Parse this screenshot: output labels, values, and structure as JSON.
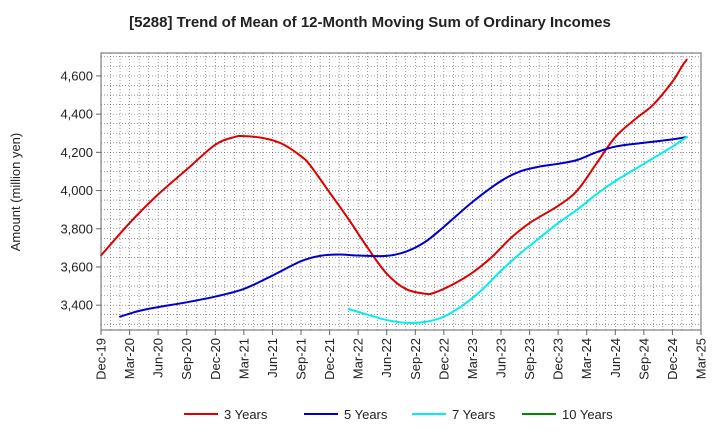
{
  "chart_data": {
    "type": "line",
    "title": "[5288]  Trend of Mean of 12-Month Moving Sum of Ordinary Incomes",
    "xlabel": "",
    "ylabel": "Amount (million yen)",
    "ylim": [
      3270,
      4720
    ],
    "y_ticks": [
      3400,
      3600,
      3800,
      4000,
      4200,
      4400,
      4600
    ],
    "y_tick_labels": [
      "3,400",
      "3,600",
      "3,800",
      "4,000",
      "4,200",
      "4,400",
      "4,600"
    ],
    "x_range": [
      0,
      63
    ],
    "x_ticks": [
      0,
      3,
      6,
      9,
      12,
      15,
      18,
      21,
      24,
      27,
      30,
      33,
      36,
      39,
      42,
      45,
      48,
      51,
      54,
      57,
      60,
      63
    ],
    "x_tick_labels": [
      "Dec-19",
      "Mar-20",
      "Jun-20",
      "Sep-20",
      "Dec-20",
      "Mar-21",
      "Jun-21",
      "Sep-21",
      "Dec-21",
      "Mar-22",
      "Jun-22",
      "Sep-22",
      "Dec-22",
      "Mar-23",
      "Jun-23",
      "Sep-23",
      "Dec-23",
      "Mar-24",
      "Jun-24",
      "Sep-24",
      "Dec-24",
      "Mar-25"
    ],
    "series": [
      {
        "name": "3 Years",
        "color": "#dd0000",
        "points": [
          [
            0,
            3660
          ],
          [
            3,
            3830
          ],
          [
            6,
            3980
          ],
          [
            9,
            4110
          ],
          [
            12,
            4240
          ],
          [
            14,
            4280
          ],
          [
            15,
            4285
          ],
          [
            17,
            4275
          ],
          [
            19,
            4245
          ],
          [
            21,
            4180
          ],
          [
            22,
            4130
          ],
          [
            24,
            3990
          ],
          [
            26,
            3850
          ],
          [
            28,
            3700
          ],
          [
            30,
            3565
          ],
          [
            32,
            3485
          ],
          [
            34,
            3460
          ],
          [
            35,
            3465
          ],
          [
            37,
            3510
          ],
          [
            39,
            3570
          ],
          [
            41,
            3650
          ],
          [
            43,
            3750
          ],
          [
            45,
            3830
          ],
          [
            48,
            3920
          ],
          [
            50,
            4000
          ],
          [
            52,
            4140
          ],
          [
            54,
            4280
          ],
          [
            56,
            4370
          ],
          [
            58,
            4450
          ],
          [
            60,
            4570
          ],
          [
            61,
            4650
          ],
          [
            61.5,
            4685
          ]
        ]
      },
      {
        "name": "5 Years",
        "color": "#0000cc",
        "points": [
          [
            2,
            3340
          ],
          [
            4,
            3370
          ],
          [
            6,
            3390
          ],
          [
            9,
            3415
          ],
          [
            12,
            3445
          ],
          [
            15,
            3485
          ],
          [
            18,
            3555
          ],
          [
            21,
            3630
          ],
          [
            23,
            3658
          ],
          [
            25,
            3665
          ],
          [
            27,
            3660
          ],
          [
            30,
            3658
          ],
          [
            32,
            3680
          ],
          [
            34,
            3730
          ],
          [
            36,
            3810
          ],
          [
            39,
            3940
          ],
          [
            42,
            4050
          ],
          [
            44,
            4100
          ],
          [
            46,
            4125
          ],
          [
            48,
            4140
          ],
          [
            50,
            4160
          ],
          [
            52,
            4200
          ],
          [
            54,
            4230
          ],
          [
            57,
            4250
          ],
          [
            60,
            4268
          ],
          [
            61.5,
            4280
          ]
        ]
      },
      {
        "name": "7 Years",
        "color": "#00eeee",
        "points": [
          [
            26,
            3380
          ],
          [
            28,
            3350
          ],
          [
            30,
            3322
          ],
          [
            32,
            3308
          ],
          [
            34,
            3312
          ],
          [
            36,
            3340
          ],
          [
            38,
            3400
          ],
          [
            40,
            3480
          ],
          [
            42,
            3580
          ],
          [
            44,
            3670
          ],
          [
            46,
            3750
          ],
          [
            48,
            3830
          ],
          [
            50,
            3900
          ],
          [
            52,
            3980
          ],
          [
            54,
            4050
          ],
          [
            56,
            4110
          ],
          [
            58,
            4170
          ],
          [
            60,
            4230
          ],
          [
            61.5,
            4280
          ]
        ]
      },
      {
        "name": "10 Years",
        "color": "#008800",
        "points": []
      }
    ],
    "grid": true,
    "legend_position": "bottom"
  }
}
